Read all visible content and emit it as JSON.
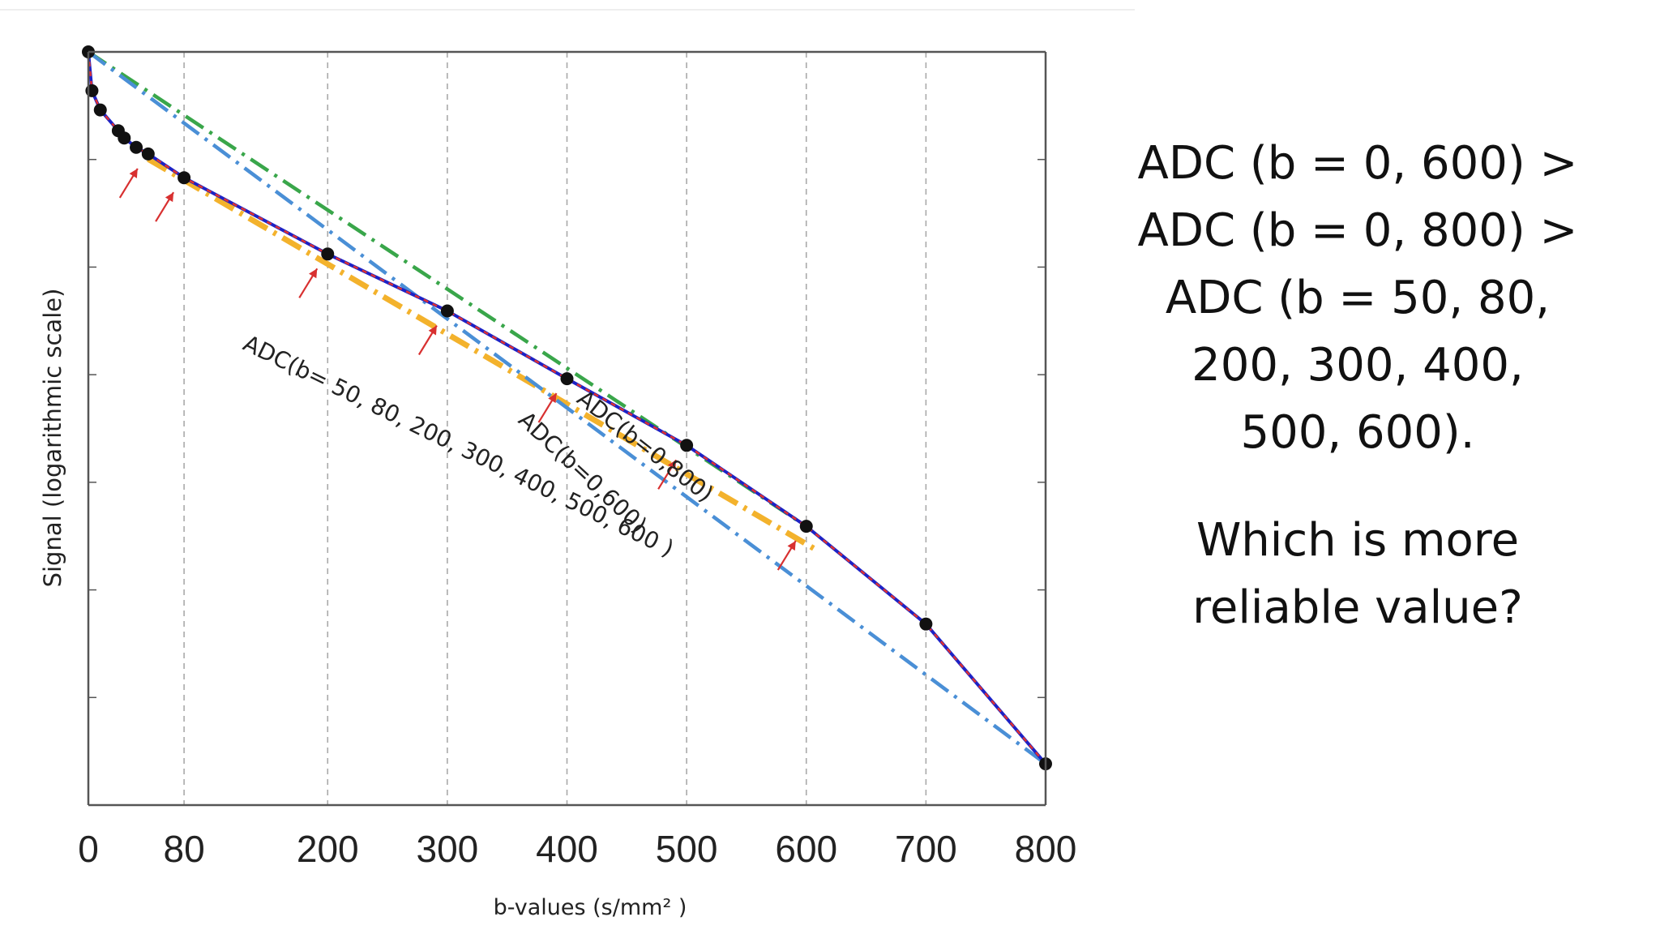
{
  "chart_data": {
    "type": "line",
    "xlabel": "b-values (s/mm² )",
    "ylabel": "Signal (logarithmic scale)",
    "x_ticks": [
      0,
      80,
      200,
      300,
      400,
      500,
      600,
      700,
      800
    ],
    "xlim": [
      0,
      800
    ],
    "y_scale": "log",
    "grid": "vertical dashed lines at x ticks",
    "series": [
      {
        "id": "measured",
        "style": "solid blue line with red dashed overlay, black markers",
        "color": "#1c22c6",
        "x": [
          0,
          3,
          10,
          25,
          30,
          40,
          50,
          80,
          200,
          300,
          400,
          500,
          600,
          700,
          800
        ],
        "y": [
          1.0,
          0.865,
          0.805,
          0.745,
          0.725,
          0.7,
          0.683,
          0.625,
          0.47,
          0.38,
          0.295,
          0.23,
          0.17,
          0.118,
          0.07
        ]
      },
      {
        "id": "fit-50-600",
        "name": "ADC(b= 50, 80, 200, 300, 400, 500, 600 )",
        "style": "dash-dot",
        "color": "#f3b22c",
        "x": [
          50,
          610
        ],
        "y": [
          0.67,
          0.155
        ]
      },
      {
        "id": "fit-0-600",
        "name": "ADC(b=0,600)",
        "style": "dash-dot",
        "color": "#39a64a",
        "x": [
          0,
          600
        ],
        "y": [
          1.0,
          0.17
        ]
      },
      {
        "id": "fit-0-800",
        "name": "ADC(b=0,800)",
        "style": "dash-dot",
        "color": "#4a8fd6",
        "x": [
          0,
          800
        ],
        "y": [
          1.0,
          0.07
        ]
      }
    ],
    "arrows_at_b": [
      50,
      80,
      200,
      300,
      400,
      500,
      600
    ],
    "arrow_color": "#d83030",
    "marker_color": "#111111"
  },
  "side_text": {
    "line1": "ADC (b = 0, 600) >",
    "line2": "ADC (b = 0, 800) >",
    "line3": "ADC (b = 50, 80,",
    "line4": "200, 300, 400,",
    "line5": "500, 600).",
    "question1": "Which is more",
    "question2": "reliable value?"
  }
}
